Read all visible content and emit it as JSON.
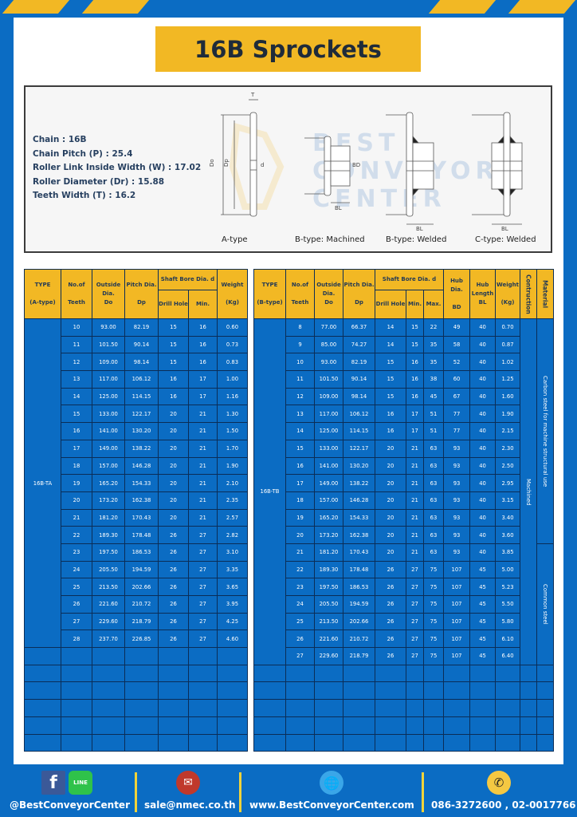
{
  "title": "16B Sprockets",
  "specs": {
    "chain": "Chain  :  16B",
    "pitch": "Chain Pitch (P)  :  25.4",
    "inside_width": "Roller Link Inside Width (W)  :  17.02",
    "roller_diameter": "Roller Diameter (Dr)  : 15.88",
    "teeth_width": "Teeth Width (T)  :  16.2"
  },
  "diagram": {
    "watermark": "BEST CONVEYOR CENTER",
    "labels": {
      "T": "T",
      "Do": "Do",
      "Dp": "Dp",
      "d": "d",
      "BD": "BD",
      "BL": "BL"
    },
    "captions": [
      "A-type",
      "B-type: Machined",
      "B-type: Welded",
      "C-type: Welded"
    ]
  },
  "table_a": {
    "headers": {
      "type": "TYPE",
      "type_sub": "(A-type)",
      "teeth": "No.of",
      "teeth_sub": "Teeth",
      "do": "Outside",
      "do_sub": "Dia.",
      "do_sub2": "Do",
      "dp": "Pitch Dia.",
      "dp_sub": "Dp",
      "bore": "Shaft Bore Dia. d",
      "drill": "Drill Hole",
      "min": "Min.",
      "weight": "Weight",
      "weight_sub": "(Kg)"
    },
    "type_label": "16B-TA",
    "rows": [
      [
        "10",
        "93.00",
        "82.19",
        "15",
        "16",
        "0.60"
      ],
      [
        "11",
        "101.50",
        "90.14",
        "15",
        "16",
        "0.73"
      ],
      [
        "12",
        "109.00",
        "98.14",
        "15",
        "16",
        "0.83"
      ],
      [
        "13",
        "117.00",
        "106.12",
        "16",
        "17",
        "1.00"
      ],
      [
        "14",
        "125.00",
        "114.15",
        "16",
        "17",
        "1.16"
      ],
      [
        "15",
        "133.00",
        "122.17",
        "20",
        "21",
        "1.30"
      ],
      [
        "16",
        "141.00",
        "130.20",
        "20",
        "21",
        "1.50"
      ],
      [
        "17",
        "149.00",
        "138.22",
        "20",
        "21",
        "1.70"
      ],
      [
        "18",
        "157.00",
        "146.28",
        "20",
        "21",
        "1.90"
      ],
      [
        "19",
        "165.20",
        "154.33",
        "20",
        "21",
        "2.10"
      ],
      [
        "20",
        "173.20",
        "162.38",
        "20",
        "21",
        "2.35"
      ],
      [
        "21",
        "181.20",
        "170.43",
        "20",
        "21",
        "2.57"
      ],
      [
        "22",
        "189.30",
        "178.48",
        "26",
        "27",
        "2.82"
      ],
      [
        "23",
        "197.50",
        "186.53",
        "26",
        "27",
        "3.10"
      ],
      [
        "24",
        "205.50",
        "194.59",
        "26",
        "27",
        "3.35"
      ],
      [
        "25",
        "213.50",
        "202.66",
        "26",
        "27",
        "3.65"
      ],
      [
        "26",
        "221.60",
        "210.72",
        "26",
        "27",
        "3.95"
      ],
      [
        "27",
        "229.60",
        "218.79",
        "26",
        "27",
        "4.25"
      ],
      [
        "28",
        "237.70",
        "226.85",
        "26",
        "27",
        "4.60"
      ]
    ]
  },
  "table_b": {
    "headers": {
      "type": "TYPE",
      "type_sub": "(B-type)",
      "teeth": "No.of",
      "teeth_sub": "Teeth",
      "do": "Outside",
      "do_sub": "Dia.",
      "do_sub2": "Do",
      "dp": "Pitch Dia.",
      "dp_sub": "Dp",
      "bore": "Shaft Bore Dia. d",
      "drill": "Drill Hole",
      "min": "Min.",
      "max": "Max.",
      "bd": "Hub Dia.",
      "bd_sub": "BD",
      "bl": "Hub",
      "bl_sub": "Length",
      "bl_sub2": "BL",
      "weight": "Weight",
      "weight_sub": "(Kg)",
      "construction": "Contruction",
      "material": "Material"
    },
    "type_label": "16B-TB",
    "construction": "Machined",
    "material_1": "Carbon steel for machine structural use",
    "material_2": "Common steel",
    "rows": [
      [
        "8",
        "77.00",
        "66.37",
        "14",
        "15",
        "22",
        "49",
        "40",
        "0.70"
      ],
      [
        "9",
        "85.00",
        "74.27",
        "14",
        "15",
        "35",
        "58",
        "40",
        "0.87"
      ],
      [
        "10",
        "93.00",
        "82.19",
        "15",
        "16",
        "35",
        "52",
        "40",
        "1.02"
      ],
      [
        "11",
        "101.50",
        "90.14",
        "15",
        "16",
        "38",
        "60",
        "40",
        "1.25"
      ],
      [
        "12",
        "109.00",
        "98.14",
        "15",
        "16",
        "45",
        "67",
        "40",
        "1.60"
      ],
      [
        "13",
        "117.00",
        "106.12",
        "16",
        "17",
        "51",
        "77",
        "40",
        "1.90"
      ],
      [
        "14",
        "125.00",
        "114.15",
        "16",
        "17",
        "51",
        "77",
        "40",
        "2.15"
      ],
      [
        "15",
        "133.00",
        "122.17",
        "20",
        "21",
        "63",
        "93",
        "40",
        "2.30"
      ],
      [
        "16",
        "141.00",
        "130.20",
        "20",
        "21",
        "63",
        "93",
        "40",
        "2.50"
      ],
      [
        "17",
        "149.00",
        "138.22",
        "20",
        "21",
        "63",
        "93",
        "40",
        "2.95"
      ],
      [
        "18",
        "157.00",
        "146.28",
        "20",
        "21",
        "63",
        "93",
        "40",
        "3.15"
      ],
      [
        "19",
        "165.20",
        "154.33",
        "20",
        "21",
        "63",
        "93",
        "40",
        "3.40"
      ],
      [
        "20",
        "173.20",
        "162.38",
        "20",
        "21",
        "63",
        "93",
        "40",
        "3.60"
      ],
      [
        "21",
        "181.20",
        "170.43",
        "20",
        "21",
        "63",
        "93",
        "40",
        "3.85"
      ],
      [
        "22",
        "189.30",
        "178.48",
        "26",
        "27",
        "75",
        "107",
        "45",
        "5.00"
      ],
      [
        "23",
        "197.50",
        "186.53",
        "26",
        "27",
        "75",
        "107",
        "45",
        "5.23"
      ],
      [
        "24",
        "205.50",
        "194.59",
        "26",
        "27",
        "75",
        "107",
        "45",
        "5.50"
      ],
      [
        "25",
        "213.50",
        "202.66",
        "26",
        "27",
        "75",
        "107",
        "45",
        "5.80"
      ],
      [
        "26",
        "221.60",
        "210.72",
        "26",
        "27",
        "75",
        "107",
        "45",
        "6.10"
      ],
      [
        "27",
        "229.60",
        "218.79",
        "26",
        "27",
        "75",
        "107",
        "45",
        "6.40"
      ]
    ]
  },
  "footer": {
    "social": "@BestConveyorCenter",
    "line_icon_text": "LINE",
    "email": "sale@nmec.co.th",
    "website": "www.BestConveyorCenter.com",
    "phone": "086-3272600 , 02-0017766"
  },
  "colors": {
    "brand_blue": "#0b6cc3",
    "accent_yellow": "#f2b824",
    "header_text": "#243a55"
  }
}
